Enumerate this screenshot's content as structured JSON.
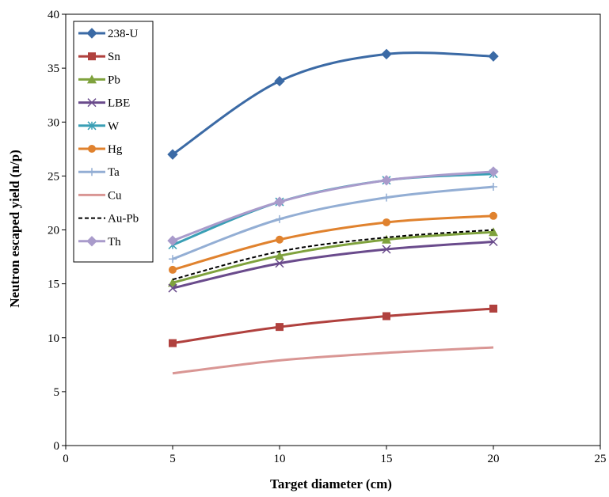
{
  "chart_data": {
    "type": "line",
    "xlabel": "Target diameter (cm)",
    "ylabel": "Neutron escaped yield (n/p)",
    "xlim": [
      0,
      25
    ],
    "ylim": [
      0,
      40
    ],
    "x_ticks": [
      "0",
      "5",
      "10",
      "15",
      "20",
      "25"
    ],
    "y_ticks": [
      "0",
      "5",
      "10",
      "15",
      "20",
      "25",
      "30",
      "35",
      "40"
    ],
    "grid": false,
    "legend_position": "top-left",
    "x": [
      5,
      10,
      15,
      20
    ],
    "series": [
      {
        "name": "238-U",
        "values": [
          27.0,
          33.8,
          36.3,
          36.1
        ],
        "color": "#3b6aa5",
        "marker": "diamond",
        "dash": false
      },
      {
        "name": "Sn",
        "values": [
          9.5,
          11.0,
          12.0,
          12.7
        ],
        "color": "#b0413e",
        "marker": "square",
        "dash": false
      },
      {
        "name": "Pb",
        "values": [
          15.1,
          17.6,
          19.1,
          19.8
        ],
        "color": "#7fa23d",
        "marker": "triangle",
        "dash": false
      },
      {
        "name": "LBE",
        "values": [
          14.6,
          16.9,
          18.2,
          18.9
        ],
        "color": "#6a4b8c",
        "marker": "x",
        "dash": false
      },
      {
        "name": "W",
        "values": [
          18.6,
          22.6,
          24.6,
          25.2
        ],
        "color": "#3a9fb5",
        "marker": "asterisk",
        "dash": false
      },
      {
        "name": "Hg",
        "values": [
          16.3,
          19.1,
          20.7,
          21.3
        ],
        "color": "#e0822e",
        "marker": "circle",
        "dash": false
      },
      {
        "name": "Ta",
        "values": [
          17.3,
          21.0,
          23.0,
          24.0
        ],
        "color": "#93aed4",
        "marker": "plus",
        "dash": false
      },
      {
        "name": "Cu",
        "values": [
          6.7,
          7.9,
          8.6,
          9.1
        ],
        "color": "#d99694",
        "marker": "none",
        "dash": false
      },
      {
        "name": "Au-Pb",
        "values": [
          15.4,
          18.0,
          19.3,
          20.0
        ],
        "color": "#000000",
        "marker": "none",
        "dash": true
      },
      {
        "name": "Th",
        "values": [
          19.0,
          22.6,
          24.6,
          25.4
        ],
        "color": "#a99bcb",
        "marker": "diamond",
        "dash": false
      }
    ]
  }
}
